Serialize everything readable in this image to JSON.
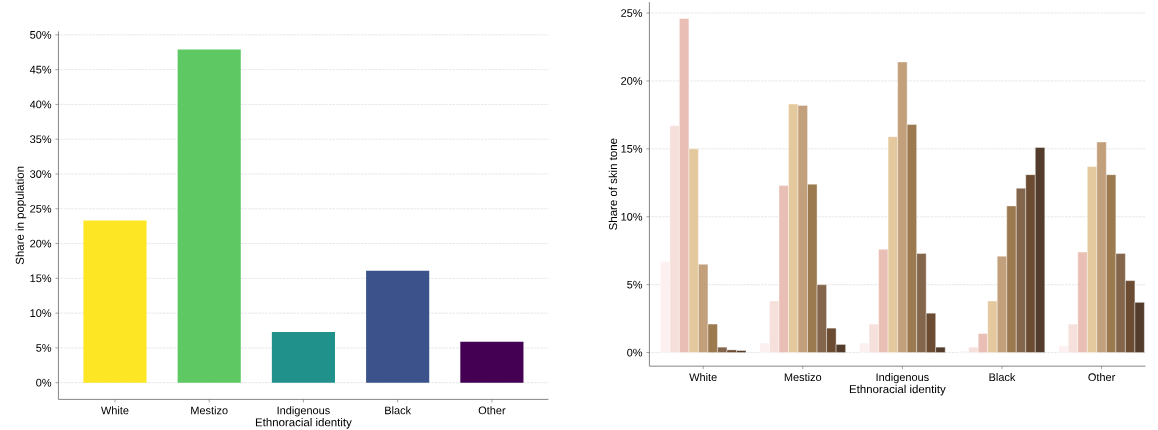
{
  "chart_data": [
    {
      "type": "bar",
      "xlabel": "Ethnoracial identity",
      "ylabel": "Share in population",
      "categories": [
        "White",
        "Mestizo",
        "Indigenous",
        "Black",
        "Other"
      ],
      "values": [
        23.3,
        47.9,
        7.3,
        16.1,
        5.9
      ],
      "colors": [
        "#fde725",
        "#5ec962",
        "#21918c",
        "#3b528b",
        "#440154"
      ],
      "ylim": [
        -2.4,
        50.5
      ],
      "yticks": [
        {
          "value": 0,
          "label": "0%"
        },
        {
          "value": 5,
          "label": "5%"
        },
        {
          "value": 10,
          "label": "10%"
        },
        {
          "value": 15,
          "label": "15%"
        },
        {
          "value": 20,
          "label": "20%"
        },
        {
          "value": 25,
          "label": "25%"
        },
        {
          "value": 30,
          "label": "30%"
        },
        {
          "value": 35,
          "label": "35%"
        },
        {
          "value": 40,
          "label": "40%"
        },
        {
          "value": 45,
          "label": "45%"
        },
        {
          "value": 50,
          "label": "50%"
        }
      ],
      "grid": "y"
    },
    {
      "type": "bar",
      "xlabel": "Ethnoracial identity",
      "ylabel": "Share of skin tone",
      "categories": [
        "White",
        "Mestizo",
        "Indigenous",
        "Black",
        "Other"
      ],
      "series": [
        {
          "color": "#fdf0f0",
          "values": [
            6.7,
            0.7,
            0.7,
            0.1,
            0.5
          ]
        },
        {
          "color": "#f5e0dc",
          "values": [
            16.7,
            3.8,
            2.1,
            0.4,
            2.1
          ]
        },
        {
          "color": "#e9bfb5",
          "values": [
            24.6,
            12.3,
            7.6,
            1.4,
            7.4
          ]
        },
        {
          "color": "#e5c99e",
          "values": [
            15.0,
            18.3,
            15.9,
            3.8,
            13.7
          ]
        },
        {
          "color": "#c2a07c",
          "values": [
            6.5,
            18.2,
            21.4,
            7.1,
            15.5
          ]
        },
        {
          "color": "#9c7a4f",
          "values": [
            2.1,
            12.4,
            16.8,
            10.8,
            13.1
          ]
        },
        {
          "color": "#84664c",
          "values": [
            0.4,
            5.0,
            7.3,
            12.1,
            7.3
          ]
        },
        {
          "color": "#6b4c33",
          "values": [
            0.2,
            1.8,
            2.9,
            13.1,
            5.3
          ]
        },
        {
          "color": "#533c2b",
          "values": [
            0.15,
            0.6,
            0.4,
            15.1,
            3.7
          ]
        }
      ],
      "ylim": [
        -1.0,
        25.8
      ],
      "yticks": [
        {
          "value": 0,
          "label": "0%"
        },
        {
          "value": 5,
          "label": "5%"
        },
        {
          "value": 10,
          "label": "10%"
        },
        {
          "value": 15,
          "label": "15%"
        },
        {
          "value": 20,
          "label": "20%"
        },
        {
          "value": 25,
          "label": "25%"
        }
      ],
      "grid": "y"
    }
  ]
}
